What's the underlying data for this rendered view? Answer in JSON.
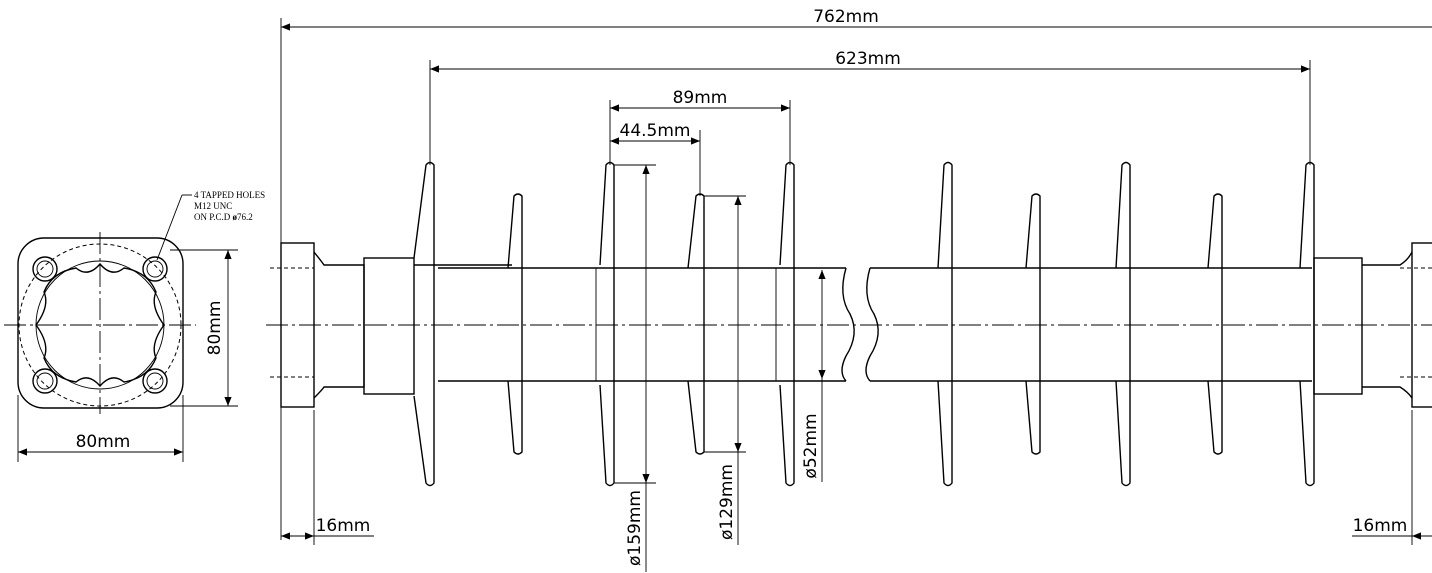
{
  "dimensions": {
    "overall_length": "762mm",
    "shed_span": "623mm",
    "shed_pitch": "89mm",
    "half_pitch": "44.5mm",
    "flange_side_width": "80mm",
    "flange_side_height": "80mm",
    "fitting_thickness_left": "16mm",
    "fitting_thickness_right": "16mm",
    "large_shed_diameter": "ø159mm",
    "small_shed_diameter": "ø129mm",
    "core_diameter": "ø52mm"
  },
  "note": {
    "line1": "4 TAPPED HOLES",
    "line2": "M12 UNC",
    "line3": "ON P.C.D ",
    "line3_symbol": "ø",
    "line3_value": "76.2"
  }
}
